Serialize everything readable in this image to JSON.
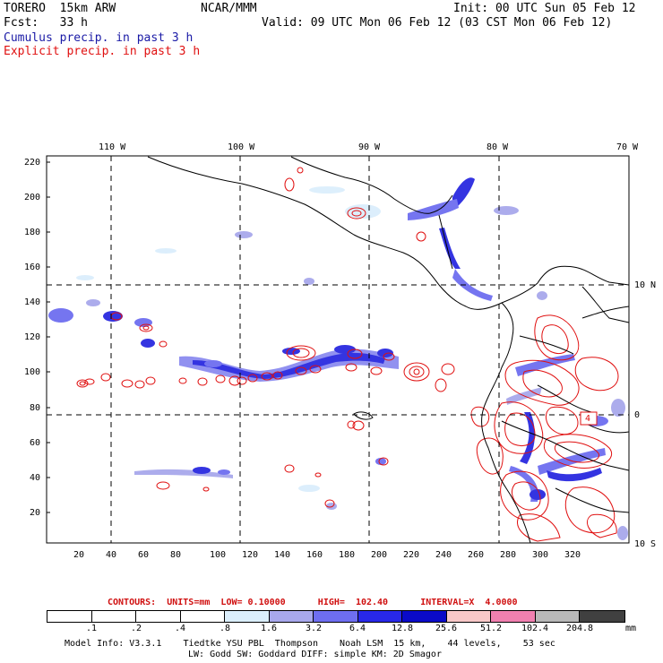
{
  "header": {
    "model": "TORERO  15km ARW",
    "center": "NCAR/MMM",
    "init": "Init: 00 UTC Sun 05 Feb 12",
    "fcst": "Fcst:   33 h",
    "valid": "Valid: 09 UTC Mon 06 Feb 12 (03 CST Mon 06 Feb 12)",
    "field1": "Cumulus precip. in past 3 h",
    "field2": "Explicit precip. in past 3 h",
    "field1_color": "#1a1aa6",
    "field2_color": "#e01010"
  },
  "map": {
    "top_lon_labels": [
      "110 W",
      "100 W",
      "90 W",
      "80 W",
      "70 W"
    ],
    "right_lat_labels": [
      "10 N",
      "0",
      "10 S"
    ],
    "left_ticks": [
      "220",
      "200",
      "180",
      "160",
      "140",
      "120",
      "100",
      "80",
      "60",
      "40",
      "20"
    ],
    "bottom_ticks": [
      "20",
      "40",
      "60",
      "80",
      "100",
      "120",
      "140",
      "160",
      "180",
      "200",
      "220",
      "240",
      "260",
      "280",
      "300",
      "320"
    ],
    "contour_box_label": "4"
  },
  "contours_info": {
    "text": "CONTOURS:  UNITS=mm  LOW= 0.10000      HIGH=  102.40      INTERVAL=X  4.0000",
    "color": "#d01010"
  },
  "legend": {
    "colors": [
      "#ffffff",
      "#ffffff",
      "#ffffff",
      "#ffffff",
      "#dbeefc",
      "#a8a8ec",
      "#6e6ef0",
      "#2828e8",
      "#0a0ac8",
      "#f8c8c8",
      "#f080b0",
      "#b8b8b8",
      "#404040",
      "#d8a8f8"
    ],
    "labels": [
      ".1",
      ".2",
      ".4",
      ".8",
      "1.6",
      "3.2",
      "6.4",
      "12.8",
      "25.6",
      "51.2",
      "102.4",
      "204.8"
    ],
    "units": "mm"
  },
  "footer": {
    "line1": "Model Info: V3.3.1    Tiedtke YSU PBL  Thompson    Noah LSM  15 km,    44 levels,    53 sec",
    "line2": "LW: Godd SW: Goddard DIFF: simple KM: 2D Smagor"
  }
}
